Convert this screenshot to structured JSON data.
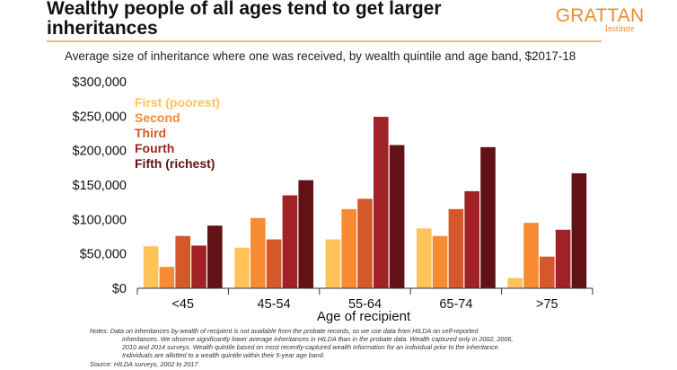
{
  "title_line1": "Wealthy people of all ages tend to get larger",
  "title_line2": "inheritances",
  "subtitle": "Average size of inheritance where one was received, by wealth quintile and age band, $2017-18",
  "brand": {
    "name": "GRATTAN",
    "sub": "Institute",
    "color": "#e88d2d"
  },
  "notes": {
    "line1": "Notes: Data on inheritances by wealth of recipient is not available from the probate records, so we use data from HILDA on self-reported",
    "line2": "inheritances. We observe significantly lower average inheritances in HILDA than in the probate data. Wealth captured only in 2002, 2006,",
    "line3": "2010 and 2014 surveys. Wealth quintile based on most recently-captured wealth information for an individual prior to the inheritance.",
    "line4": "Individuals are allotted to a wealth quintile within their 5-year age band.",
    "source": "Source: HILDA surveys, 2002 to 2017."
  },
  "chart_data": {
    "type": "bar",
    "title": "Wealthy people of all ages tend to get larger inheritances",
    "xlabel": "Age of recipient",
    "ylabel": "",
    "ylim": [
      0,
      300000
    ],
    "yticks": [
      0,
      50000,
      100000,
      150000,
      200000,
      250000,
      300000
    ],
    "ytick_labels": [
      "$0",
      "$50,000",
      "$100,000",
      "$150,000",
      "$200,000",
      "$250,000",
      "$300,000"
    ],
    "categories": [
      "<45",
      "45-54",
      "55-64",
      "65-74",
      ">75"
    ],
    "legend_position": "top-left",
    "series": [
      {
        "name": "First (poorest)",
        "color": "#ffc35a",
        "values": [
          61000,
          59000,
          71000,
          87000,
          15000
        ]
      },
      {
        "name": "Second",
        "color": "#f68b33",
        "values": [
          31000,
          102000,
          115000,
          76000,
          95000
        ]
      },
      {
        "name": "Third",
        "color": "#d4582a",
        "values": [
          76000,
          71000,
          130000,
          115000,
          46000
        ]
      },
      {
        "name": "Fourth",
        "color": "#a02226",
        "values": [
          62000,
          135000,
          249000,
          141000,
          85000
        ]
      },
      {
        "name": "Fifth (richest)",
        "color": "#621214",
        "values": [
          91000,
          157000,
          208000,
          205000,
          167000
        ]
      }
    ]
  }
}
